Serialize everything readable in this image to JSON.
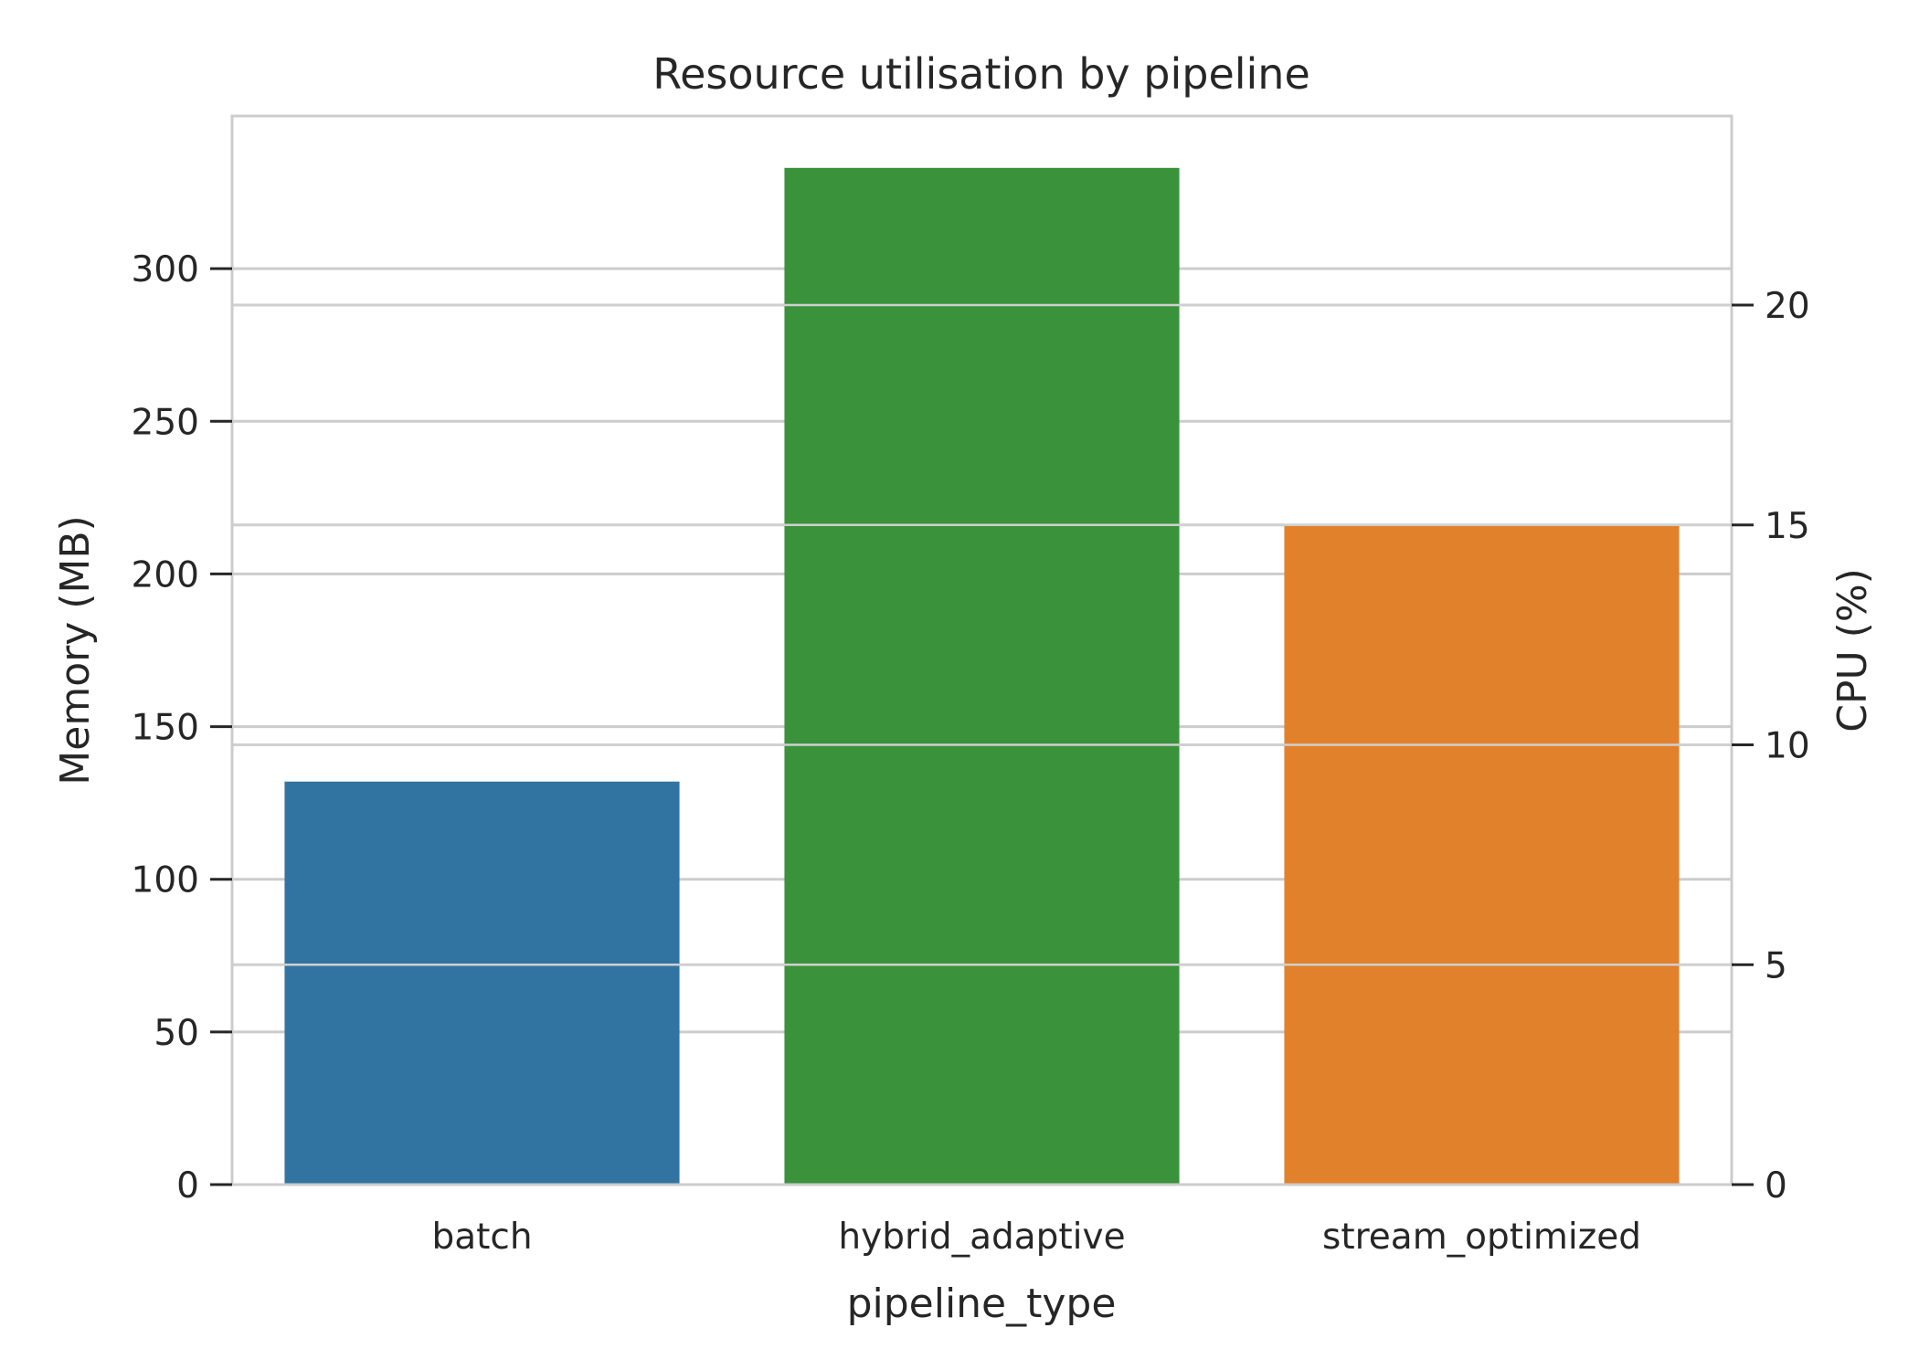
{
  "chart_data": {
    "type": "bar",
    "title": "Resource utilisation by pipeline",
    "xlabel": "pipeline_type",
    "ylabel": "Memory (MB)",
    "y2label": "CPU (%)",
    "categories": [
      "batch",
      "hybrid_adaptive",
      "stream_optimized"
    ],
    "series": [
      {
        "values": [
          132,
          333,
          216
        ]
      }
    ],
    "ylim": [
      0,
      350
    ],
    "y2lim": [
      0,
      24.3
    ],
    "yticks": [
      0,
      50,
      100,
      150,
      200,
      250,
      300
    ],
    "y2ticks": [
      0,
      5,
      10,
      15,
      20
    ],
    "grid": true,
    "colors": [
      "#3274a1",
      "#3a923a",
      "#e1812c"
    ]
  }
}
